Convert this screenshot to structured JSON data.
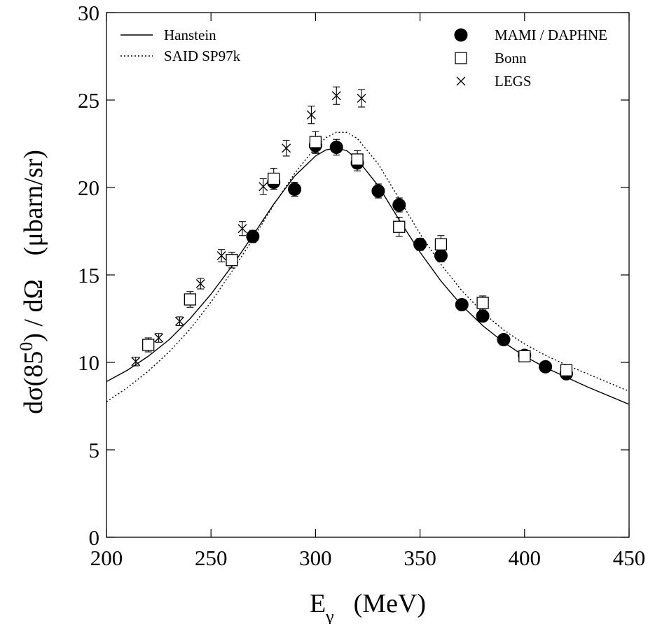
{
  "chart_data": {
    "type": "scatter",
    "xlabel": {
      "main": "E",
      "sub": "γ",
      "unit": "(MeV)"
    },
    "ylabel": {
      "main": "dσ(85",
      "sup": "0",
      "rest": ") / dΩ",
      "unit": "(μbarn/sr)"
    },
    "xlim": [
      200,
      450
    ],
    "ylim": [
      0,
      30
    ],
    "x_ticks": [
      200,
      250,
      300,
      350,
      400,
      450
    ],
    "y_ticks": [
      0,
      5,
      10,
      15,
      20,
      25,
      30
    ],
    "grid": false,
    "legend_placement_lines": "top-left",
    "legend_placement_points": "top-right",
    "lines": [
      {
        "name": "Hanstein",
        "style": "solid",
        "points": [
          [
            200,
            8.9
          ],
          [
            210,
            9.55
          ],
          [
            220,
            10.35
          ],
          [
            230,
            11.3
          ],
          [
            240,
            12.5
          ],
          [
            250,
            13.9
          ],
          [
            260,
            15.5
          ],
          [
            270,
            17.25
          ],
          [
            280,
            19.05
          ],
          [
            290,
            20.65
          ],
          [
            300,
            21.8
          ],
          [
            305,
            22.15
          ],
          [
            310,
            22.25
          ],
          [
            315,
            22.1
          ],
          [
            320,
            21.6
          ],
          [
            330,
            20.1
          ],
          [
            340,
            18.15
          ],
          [
            350,
            16.3
          ],
          [
            360,
            14.65
          ],
          [
            370,
            13.25
          ],
          [
            380,
            12.1
          ],
          [
            390,
            11.15
          ],
          [
            400,
            10.35
          ],
          [
            410,
            9.7
          ],
          [
            420,
            9.15
          ],
          [
            430,
            8.6
          ],
          [
            440,
            8.1
          ],
          [
            450,
            7.6
          ]
        ]
      },
      {
        "name": "SAID SP97k",
        "style": "dotted",
        "points": [
          [
            200,
            7.75
          ],
          [
            210,
            8.55
          ],
          [
            220,
            9.5
          ],
          [
            230,
            10.6
          ],
          [
            240,
            11.9
          ],
          [
            250,
            13.45
          ],
          [
            260,
            15.2
          ],
          [
            270,
            17.05
          ],
          [
            280,
            19.0
          ],
          [
            290,
            20.8
          ],
          [
            300,
            22.3
          ],
          [
            305,
            22.85
          ],
          [
            310,
            23.15
          ],
          [
            315,
            23.15
          ],
          [
            320,
            22.8
          ],
          [
            330,
            21.35
          ],
          [
            340,
            19.35
          ],
          [
            350,
            17.35
          ],
          [
            360,
            15.6
          ],
          [
            370,
            14.1
          ],
          [
            380,
            12.85
          ],
          [
            390,
            11.85
          ],
          [
            400,
            11.05
          ],
          [
            410,
            10.4
          ],
          [
            420,
            9.85
          ],
          [
            430,
            9.35
          ],
          [
            440,
            8.85
          ],
          [
            450,
            8.35
          ]
        ]
      }
    ],
    "series": [
      {
        "name": "MAMI / DAPHNE",
        "marker": "filled-circle",
        "points": [
          {
            "x": 270,
            "y": 17.2,
            "err": 0.35
          },
          {
            "x": 280,
            "y": 20.3,
            "err": 0.4
          },
          {
            "x": 290,
            "y": 19.9,
            "err": 0.4
          },
          {
            "x": 300,
            "y": 22.4,
            "err": 0.45
          },
          {
            "x": 310,
            "y": 22.3,
            "err": 0.45
          },
          {
            "x": 320,
            "y": 21.4,
            "err": 0.45
          },
          {
            "x": 330,
            "y": 19.8,
            "err": 0.4
          },
          {
            "x": 340,
            "y": 19.0,
            "err": 0.4
          },
          {
            "x": 350,
            "y": 16.75,
            "err": 0.35
          },
          {
            "x": 360,
            "y": 16.1,
            "err": 0.35
          },
          {
            "x": 370,
            "y": 13.3,
            "err": 0.3
          },
          {
            "x": 380,
            "y": 12.65,
            "err": 0.3
          },
          {
            "x": 390,
            "y": 11.3,
            "err": 0.25
          },
          {
            "x": 400,
            "y": 10.4,
            "err": 0.25
          },
          {
            "x": 410,
            "y": 9.75,
            "err": 0.2
          },
          {
            "x": 420,
            "y": 9.35,
            "err": 0.2
          }
        ]
      },
      {
        "name": "Bonn",
        "marker": "open-square",
        "points": [
          {
            "x": 220,
            "y": 11.0,
            "err": 0.4
          },
          {
            "x": 240,
            "y": 13.6,
            "err": 0.45
          },
          {
            "x": 260,
            "y": 15.85,
            "err": 0.45
          },
          {
            "x": 280,
            "y": 20.5,
            "err": 0.6
          },
          {
            "x": 300,
            "y": 22.6,
            "err": 0.6
          },
          {
            "x": 320,
            "y": 21.6,
            "err": 0.5
          },
          {
            "x": 340,
            "y": 17.75,
            "err": 0.55
          },
          {
            "x": 360,
            "y": 16.75,
            "err": 0.5
          },
          {
            "x": 380,
            "y": 13.4,
            "err": 0.4
          },
          {
            "x": 400,
            "y": 10.35,
            "err": 0.3
          },
          {
            "x": 420,
            "y": 9.55,
            "err": 0.3
          }
        ]
      },
      {
        "name": "LEGS",
        "marker": "cross",
        "points": [
          {
            "x": 214,
            "y": 10.05,
            "err": 0.25
          },
          {
            "x": 225,
            "y": 11.4,
            "err": 0.25
          },
          {
            "x": 235,
            "y": 12.35,
            "err": 0.25
          },
          {
            "x": 245,
            "y": 14.5,
            "err": 0.3
          },
          {
            "x": 255,
            "y": 16.1,
            "err": 0.35
          },
          {
            "x": 265,
            "y": 17.65,
            "err": 0.4
          },
          {
            "x": 275,
            "y": 20.05,
            "err": 0.45
          },
          {
            "x": 286,
            "y": 22.25,
            "err": 0.45
          },
          {
            "x": 298,
            "y": 24.15,
            "err": 0.5
          },
          {
            "x": 310,
            "y": 25.25,
            "err": 0.5
          },
          {
            "x": 322,
            "y": 25.1,
            "err": 0.5
          }
        ]
      }
    ]
  }
}
